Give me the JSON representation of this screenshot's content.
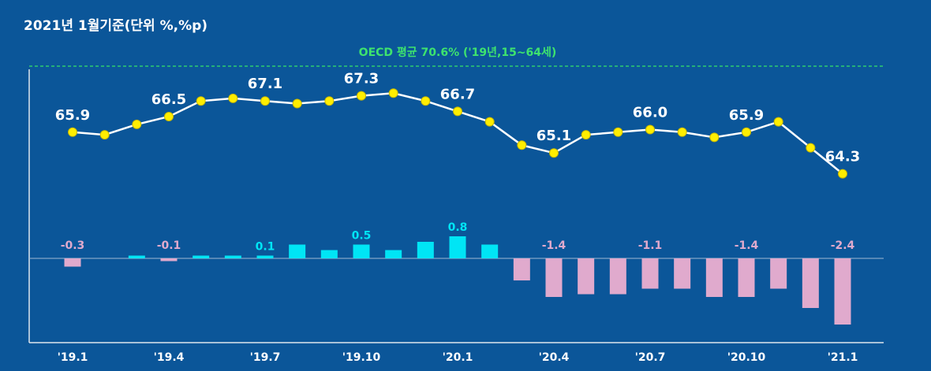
{
  "chart_data": {
    "type": "combo",
    "title": "2021년 1월기준(단위 %,%p)",
    "annotation": "OECD 평균 70.6% ('19년,15~64세)",
    "categories": [
      "'19.1",
      null,
      null,
      "'19.4",
      null,
      null,
      "'19.7",
      null,
      null,
      "'19.10",
      null,
      null,
      "'20.1",
      null,
      null,
      "'20.4",
      null,
      null,
      "'20.7",
      null,
      null,
      "'20.10",
      null,
      null,
      "'21.1"
    ],
    "ylim": [
      63.5,
      68.5
    ],
    "y2lim": [
      -3,
      1.5
    ],
    "series": [
      {
        "type": "line",
        "color": "#ffffff",
        "marker_color": "#ffee00",
        "values": [
          65.9,
          65.8,
          66.2,
          66.5,
          67.1,
          67.2,
          67.1,
          67.0,
          67.1,
          67.3,
          67.4,
          67.1,
          66.7,
          66.3,
          65.4,
          65.1,
          65.8,
          65.9,
          66.0,
          65.9,
          65.7,
          65.9,
          66.3,
          65.3,
          64.3
        ],
        "value_labels": [
          "65.9",
          null,
          null,
          "66.5",
          null,
          null,
          "67.1",
          null,
          null,
          "67.3",
          null,
          null,
          "66.7",
          null,
          null,
          "65.1",
          null,
          null,
          "66.0",
          null,
          null,
          "65.9",
          null,
          null,
          "64.3"
        ]
      },
      {
        "type": "bar",
        "axis": "y2",
        "color": "#00e5f5",
        "negative_color": "#e0aacd",
        "values": [
          -0.3,
          0.0,
          0.1,
          -0.1,
          0.1,
          0.1,
          0.1,
          0.5,
          0.3,
          0.5,
          0.3,
          0.6,
          0.8,
          0.5,
          -0.8,
          -1.4,
          -1.3,
          -1.3,
          -1.1,
          -1.1,
          -1.4,
          -1.4,
          -1.1,
          -1.8,
          -2.4
        ],
        "value_labels": [
          "-0.3",
          null,
          null,
          "-0.1",
          null,
          null,
          "0.1",
          null,
          null,
          "0.5",
          null,
          null,
          "0.8",
          null,
          null,
          "-1.4",
          null,
          null,
          "-1.1",
          null,
          null,
          "-1.4",
          null,
          null,
          "-2.4"
        ]
      }
    ]
  }
}
